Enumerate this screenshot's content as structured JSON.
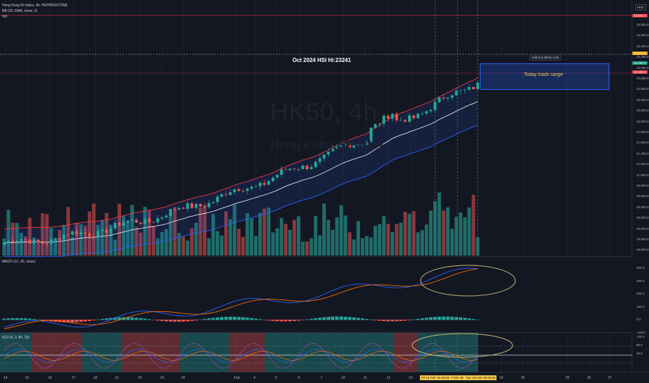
{
  "header": {
    "symbol_line": "Hong Kong 50 Index, 4h, PEPPERSTONE",
    "bb_line": "BB (20, EMA, close, 2)",
    "vol_line": "Vol",
    "currency": "HKD"
  },
  "watermark": {
    "symbol": "HK50, 4h",
    "name": "Hong Kong 50 Index"
  },
  "annotations": {
    "high_label": "Oct 2024 HSI Hi:23241",
    "range_label": "Today trade range",
    "measure_tag": "443.2 (1.96%) 4,43"
  },
  "price_axis": {
    "ticks": [
      "23,800.0",
      "23,600.0",
      "23,400.0",
      "23,200.0",
      "23,000.0",
      "22,800.0",
      "22,600.0",
      "22,400.0",
      "22,200.0",
      "22,000.0",
      "21,800.0",
      "21,600.0",
      "21,400.0",
      "21,200.0",
      "21,000.0",
      "20,800.0",
      "20,600.0",
      "20,400.0",
      "20,200.0",
      "20,000.0",
      "19,800.0",
      "19,600.0"
    ],
    "tags": [
      {
        "text": "23,942.7",
        "color": "#f23645"
      },
      {
        "text": "23,241.0",
        "color": "#f7a600"
      },
      {
        "text": "23,082.2",
        "color": "#089981"
      },
      {
        "text": "22,888.3",
        "color": "#f23645"
      }
    ]
  },
  "macd": {
    "label": "MACD (12, 26, close)",
    "ticks": [
      "400.0",
      "300.0",
      "200.0",
      "100.0",
      "0.0",
      "-100.0"
    ]
  },
  "kdj": {
    "label": "KDJ (9, 3, 80, 20)",
    "ticks": [
      "120.0",
      "80.0",
      "40.0"
    ]
  },
  "time_axis": {
    "ticks": [
      "14",
      "15",
      "16",
      "17",
      "18",
      "21",
      "22",
      "23",
      "24",
      "Feb",
      "4",
      "5",
      "6",
      "7",
      "10",
      "11",
      "12",
      "13",
      "19",
      "20",
      "25",
      "26",
      "27"
    ],
    "date_tags": [
      "Fri 14 Feb '25  09:00",
      "7 Feb '25",
      "Tue 18 Feb '25  09:00"
    ]
  },
  "colors": {
    "bull": "#26a69a",
    "bear": "#ef5350",
    "upper_band": "#f23645",
    "lower_band": "#2962ff",
    "basis": "#e0e3eb",
    "highlight_ellipse": "#c9b67a"
  }
}
